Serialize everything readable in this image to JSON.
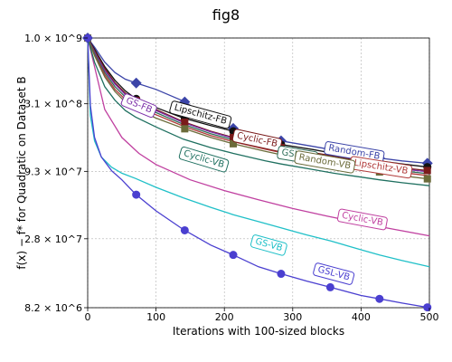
{
  "chart_data": {
    "type": "line",
    "title": "fig8",
    "xlabel": "Iterations with 100-sized blocks",
    "ylabel": "f(x) − f* for Quadratic on Dataset B",
    "xlim": [
      0,
      500
    ],
    "ylim": [
      8200000,
      1000000000
    ],
    "yscale": "log",
    "grid": true,
    "x_ticks": [
      0,
      100,
      200,
      300,
      400,
      500
    ],
    "x_tick_labels": [
      "0",
      "100",
      "200",
      "300",
      "400",
      "500"
    ],
    "y_ticks": [
      8200000,
      28000000,
      93000000,
      310000000,
      1000000000
    ],
    "y_tick_labels": [
      "8.2 × 10^6",
      "2.8 × 10^7",
      "9.3 × 10^7",
      "3.1 × 10^8",
      "1.0 × 10^9"
    ],
    "series": [
      {
        "name": "Random-FB",
        "color": "#3b44a8",
        "marker": "diamond",
        "x": [
          0,
          10,
          25,
          40,
          55,
          70,
          100,
          140,
          180,
          213,
          260,
          283,
          330,
          360,
          400,
          427,
          460,
          500
        ],
        "y": [
          1000000000,
          850000000,
          650000000,
          540000000,
          480000000,
          450000000,
          400000000,
          325000000,
          240000000,
          200000000,
          170000000,
          160000000,
          145000000,
          136000000,
          125000000,
          118000000,
          112000000,
          107000000
        ],
        "marker_x": [
          0,
          71,
          142,
          213,
          283,
          355,
          427,
          497
        ],
        "label_x": 390,
        "label_y": 130000000
      },
      {
        "name": "Lipschitz-FB",
        "color": "#111111",
        "marker": "circle",
        "x": [
          0,
          10,
          25,
          40,
          55,
          70,
          100,
          140,
          180,
          213,
          260,
          283,
          330,
          360,
          400,
          427,
          460,
          500
        ],
        "y": [
          1000000000,
          820000000,
          600000000,
          470000000,
          390000000,
          340000000,
          290000000,
          240000000,
          210000000,
          190000000,
          160000000,
          150000000,
          137000000,
          128000000,
          118000000,
          112000000,
          106000000,
          100000000
        ],
        "marker_x": [
          0,
          71,
          142,
          213,
          283,
          355,
          427,
          497
        ],
        "label_x": 165,
        "label_y": 255000000
      },
      {
        "name": "Cyclic-FB",
        "color": "#7a1a1a",
        "marker": "square",
        "x": [
          0,
          10,
          25,
          40,
          55,
          70,
          100,
          140,
          180,
          213,
          260,
          283,
          330,
          360,
          400,
          427,
          460,
          500
        ],
        "y": [
          1000000000,
          800000000,
          580000000,
          450000000,
          375000000,
          330000000,
          280000000,
          225000000,
          190000000,
          170000000,
          150000000,
          142000000,
          130000000,
          122000000,
          112000000,
          106000000,
          99000000,
          94000000
        ],
        "marker_x": [
          0,
          71,
          142,
          213,
          283,
          355,
          427,
          497
        ],
        "label_x": 248,
        "label_y": 162000000
      },
      {
        "name": "GS-FB",
        "color": "#7b2fa8",
        "marker": "none",
        "x": [
          0,
          10,
          25,
          40,
          55,
          70,
          100,
          140,
          180,
          213,
          260,
          283,
          330,
          360,
          400,
          427,
          460,
          500
        ],
        "y": [
          1000000000,
          780000000,
          560000000,
          440000000,
          365000000,
          320000000,
          275000000,
          222000000,
          188000000,
          168000000,
          146000000,
          138000000,
          126000000,
          119000000,
          110000000,
          104000000,
          97000000,
          92000000
        ],
        "marker_x": [],
        "label_x": 75,
        "label_y": 300000000
      },
      {
        "name": "GSL-FB",
        "color": "#2f6e5a",
        "marker": "none",
        "x": [
          0,
          10,
          25,
          40,
          55,
          70,
          100,
          140,
          180,
          213,
          260,
          283,
          330,
          360,
          400,
          427,
          460,
          500
        ],
        "y": [
          1000000000,
          760000000,
          540000000,
          420000000,
          350000000,
          310000000,
          265000000,
          215000000,
          182000000,
          163000000,
          142000000,
          134000000,
          122000000,
          115000000,
          106000000,
          100000000,
          94000000,
          89000000
        ],
        "marker_x": [],
        "label_x": 307,
        "label_y": 124000000
      },
      {
        "name": "Lipschitz-VB",
        "color": "#b03a3a",
        "marker": "none",
        "x": [
          0,
          10,
          25,
          40,
          55,
          70,
          100,
          140,
          180,
          213,
          260,
          283,
          330,
          360,
          400,
          427,
          460,
          500
        ],
        "y": [
          1000000000,
          740000000,
          520000000,
          400000000,
          335000000,
          300000000,
          255000000,
          208000000,
          176000000,
          158000000,
          138000000,
          130000000,
          118000000,
          111000000,
          102000000,
          97000000,
          91000000,
          86000000
        ],
        "marker_x": [],
        "label_x": 429,
        "label_y": 100000000
      },
      {
        "name": "Random-VB",
        "color": "#6b6b3a",
        "marker": "square",
        "x": [
          0,
          10,
          25,
          40,
          55,
          70,
          100,
          140,
          180,
          213,
          260,
          283,
          330,
          360,
          400,
          427,
          460,
          500
        ],
        "y": [
          1000000000,
          730000000,
          500000000,
          385000000,
          320000000,
          285000000,
          240000000,
          200000000,
          170000000,
          152000000,
          133000000,
          125000000,
          113000000,
          106000000,
          97000000,
          92000000,
          86000000,
          81000000
        ],
        "marker_x": [
          0,
          142,
          213,
          283,
          355,
          427,
          497
        ],
        "label_x": 347,
        "label_y": 110000000
      },
      {
        "name": "Cyclic-VB",
        "color": "#c040a0",
        "marker": "none",
        "x": [
          0,
          25,
          50,
          75,
          100,
          150,
          200,
          250,
          300,
          350,
          400,
          450,
          500
        ],
        "y": [
          1000000000,
          280000000,
          170000000,
          128000000,
          105000000,
          80000000,
          66000000,
          56000000,
          48000000,
          42000000,
          37000000,
          33000000,
          29500000
        ],
        "marker_x": [],
        "label_x": 402,
        "label_y": 39500000
      },
      {
        "name": "Cyclic-VB",
        "color": "#1f7060",
        "marker": "circle",
        "x": [
          0,
          10,
          25,
          40,
          55,
          70,
          100,
          140,
          180,
          213,
          260,
          283,
          330,
          360,
          400,
          427,
          460,
          500
        ],
        "y": [
          1000000000,
          650000000,
          420000000,
          330000000,
          275000000,
          245000000,
          205000000,
          165000000,
          142000000,
          128000000,
          112000000,
          106000000,
          96000000,
          90000000,
          84000000,
          80000000,
          76000000,
          72000000
        ],
        "marker_x": [],
        "label_x": 170,
        "label_y": 115000000
      },
      {
        "name": "GS-VB",
        "color": "#20c0c8",
        "marker": "circle",
        "x": [
          0,
          4,
          10,
          20,
          35,
          50,
          70,
          100,
          140,
          180,
          213,
          250,
          283,
          320,
          355,
          400,
          427,
          460,
          500
        ],
        "y": [
          1000000000,
          250000000,
          160000000,
          120000000,
          100000000,
          90000000,
          82000000,
          70000000,
          58000000,
          49000000,
          43000000,
          38000000,
          34000000,
          30000000,
          27000000,
          23000000,
          21000000,
          19000000,
          17000000
        ],
        "marker_x": [],
        "label_x": 265,
        "label_y": 25000000
      },
      {
        "name": "GSL-VB",
        "color": "#4a3fd0",
        "marker": "circle",
        "x": [
          0,
          4,
          10,
          20,
          35,
          50,
          70,
          100,
          140,
          180,
          213,
          250,
          283,
          320,
          355,
          400,
          427,
          460,
          500
        ],
        "y": [
          1000000000,
          300000000,
          170000000,
          120000000,
          94000000,
          80000000,
          62000000,
          46000000,
          33000000,
          25000000,
          21000000,
          17000000,
          15000000,
          13200000,
          11800000,
          10200000,
          9600000,
          8900000,
          8200000
        ],
        "marker_x": [
          0,
          71,
          142,
          213,
          283,
          355,
          427,
          497
        ],
        "label_x": 360,
        "label_y": 15000000
      }
    ]
  }
}
